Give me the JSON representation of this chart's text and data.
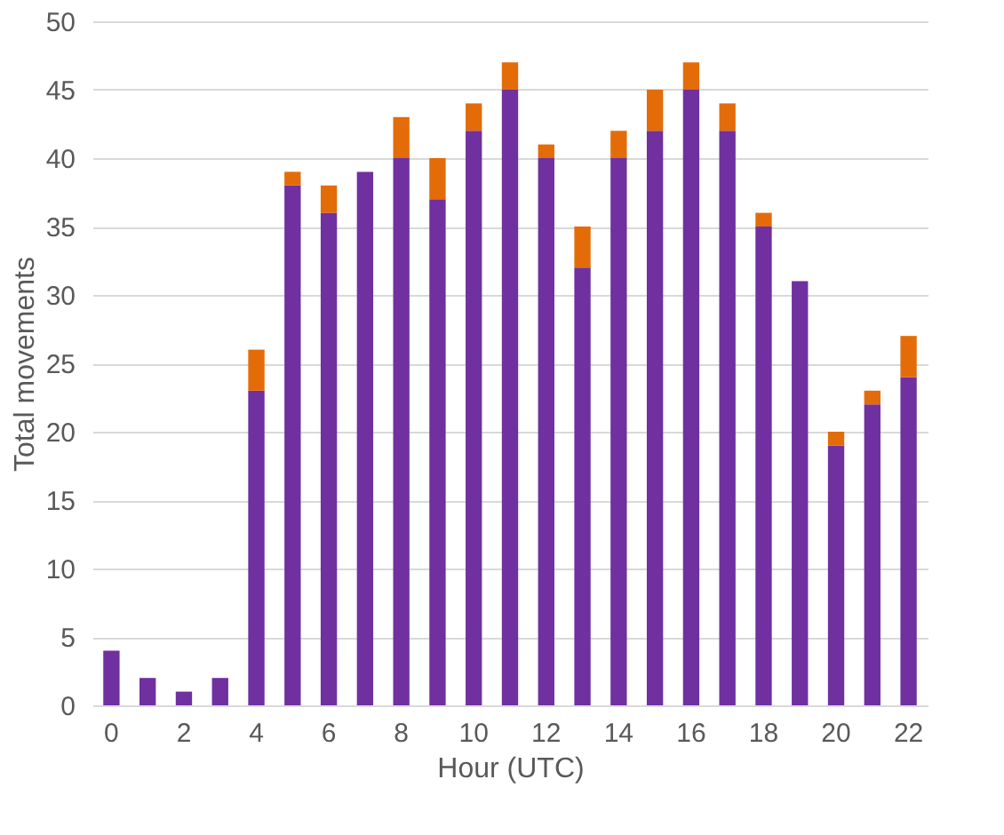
{
  "chart_data": {
    "type": "bar",
    "stacked": true,
    "xlabel": "Hour (UTC)",
    "ylabel": "Total movements",
    "categories": [
      "0",
      null,
      "2",
      null,
      "4",
      null,
      "6",
      null,
      "8",
      null,
      "10",
      null,
      "12",
      null,
      "14",
      null,
      "16",
      null,
      "18",
      null,
      "20",
      null,
      "22"
    ],
    "series": [
      {
        "color": "#7030a0",
        "values": [
          4,
          2,
          1,
          2,
          23,
          38,
          36,
          39,
          40,
          37,
          42,
          45,
          40,
          32,
          40,
          42,
          45,
          42,
          35,
          31,
          19,
          22,
          24
        ]
      },
      {
        "color": "#e36c09",
        "values": [
          0,
          0,
          0,
          0,
          3,
          1,
          2,
          0,
          3,
          3,
          2,
          2,
          1,
          3,
          2,
          3,
          2,
          2,
          1,
          0,
          1,
          1,
          3
        ]
      }
    ],
    "ylim": [
      0,
      50
    ],
    "yticks": [
      0,
      5,
      10,
      15,
      20,
      25,
      30,
      35,
      40,
      45,
      50
    ],
    "grid": "y",
    "legend": false
  }
}
